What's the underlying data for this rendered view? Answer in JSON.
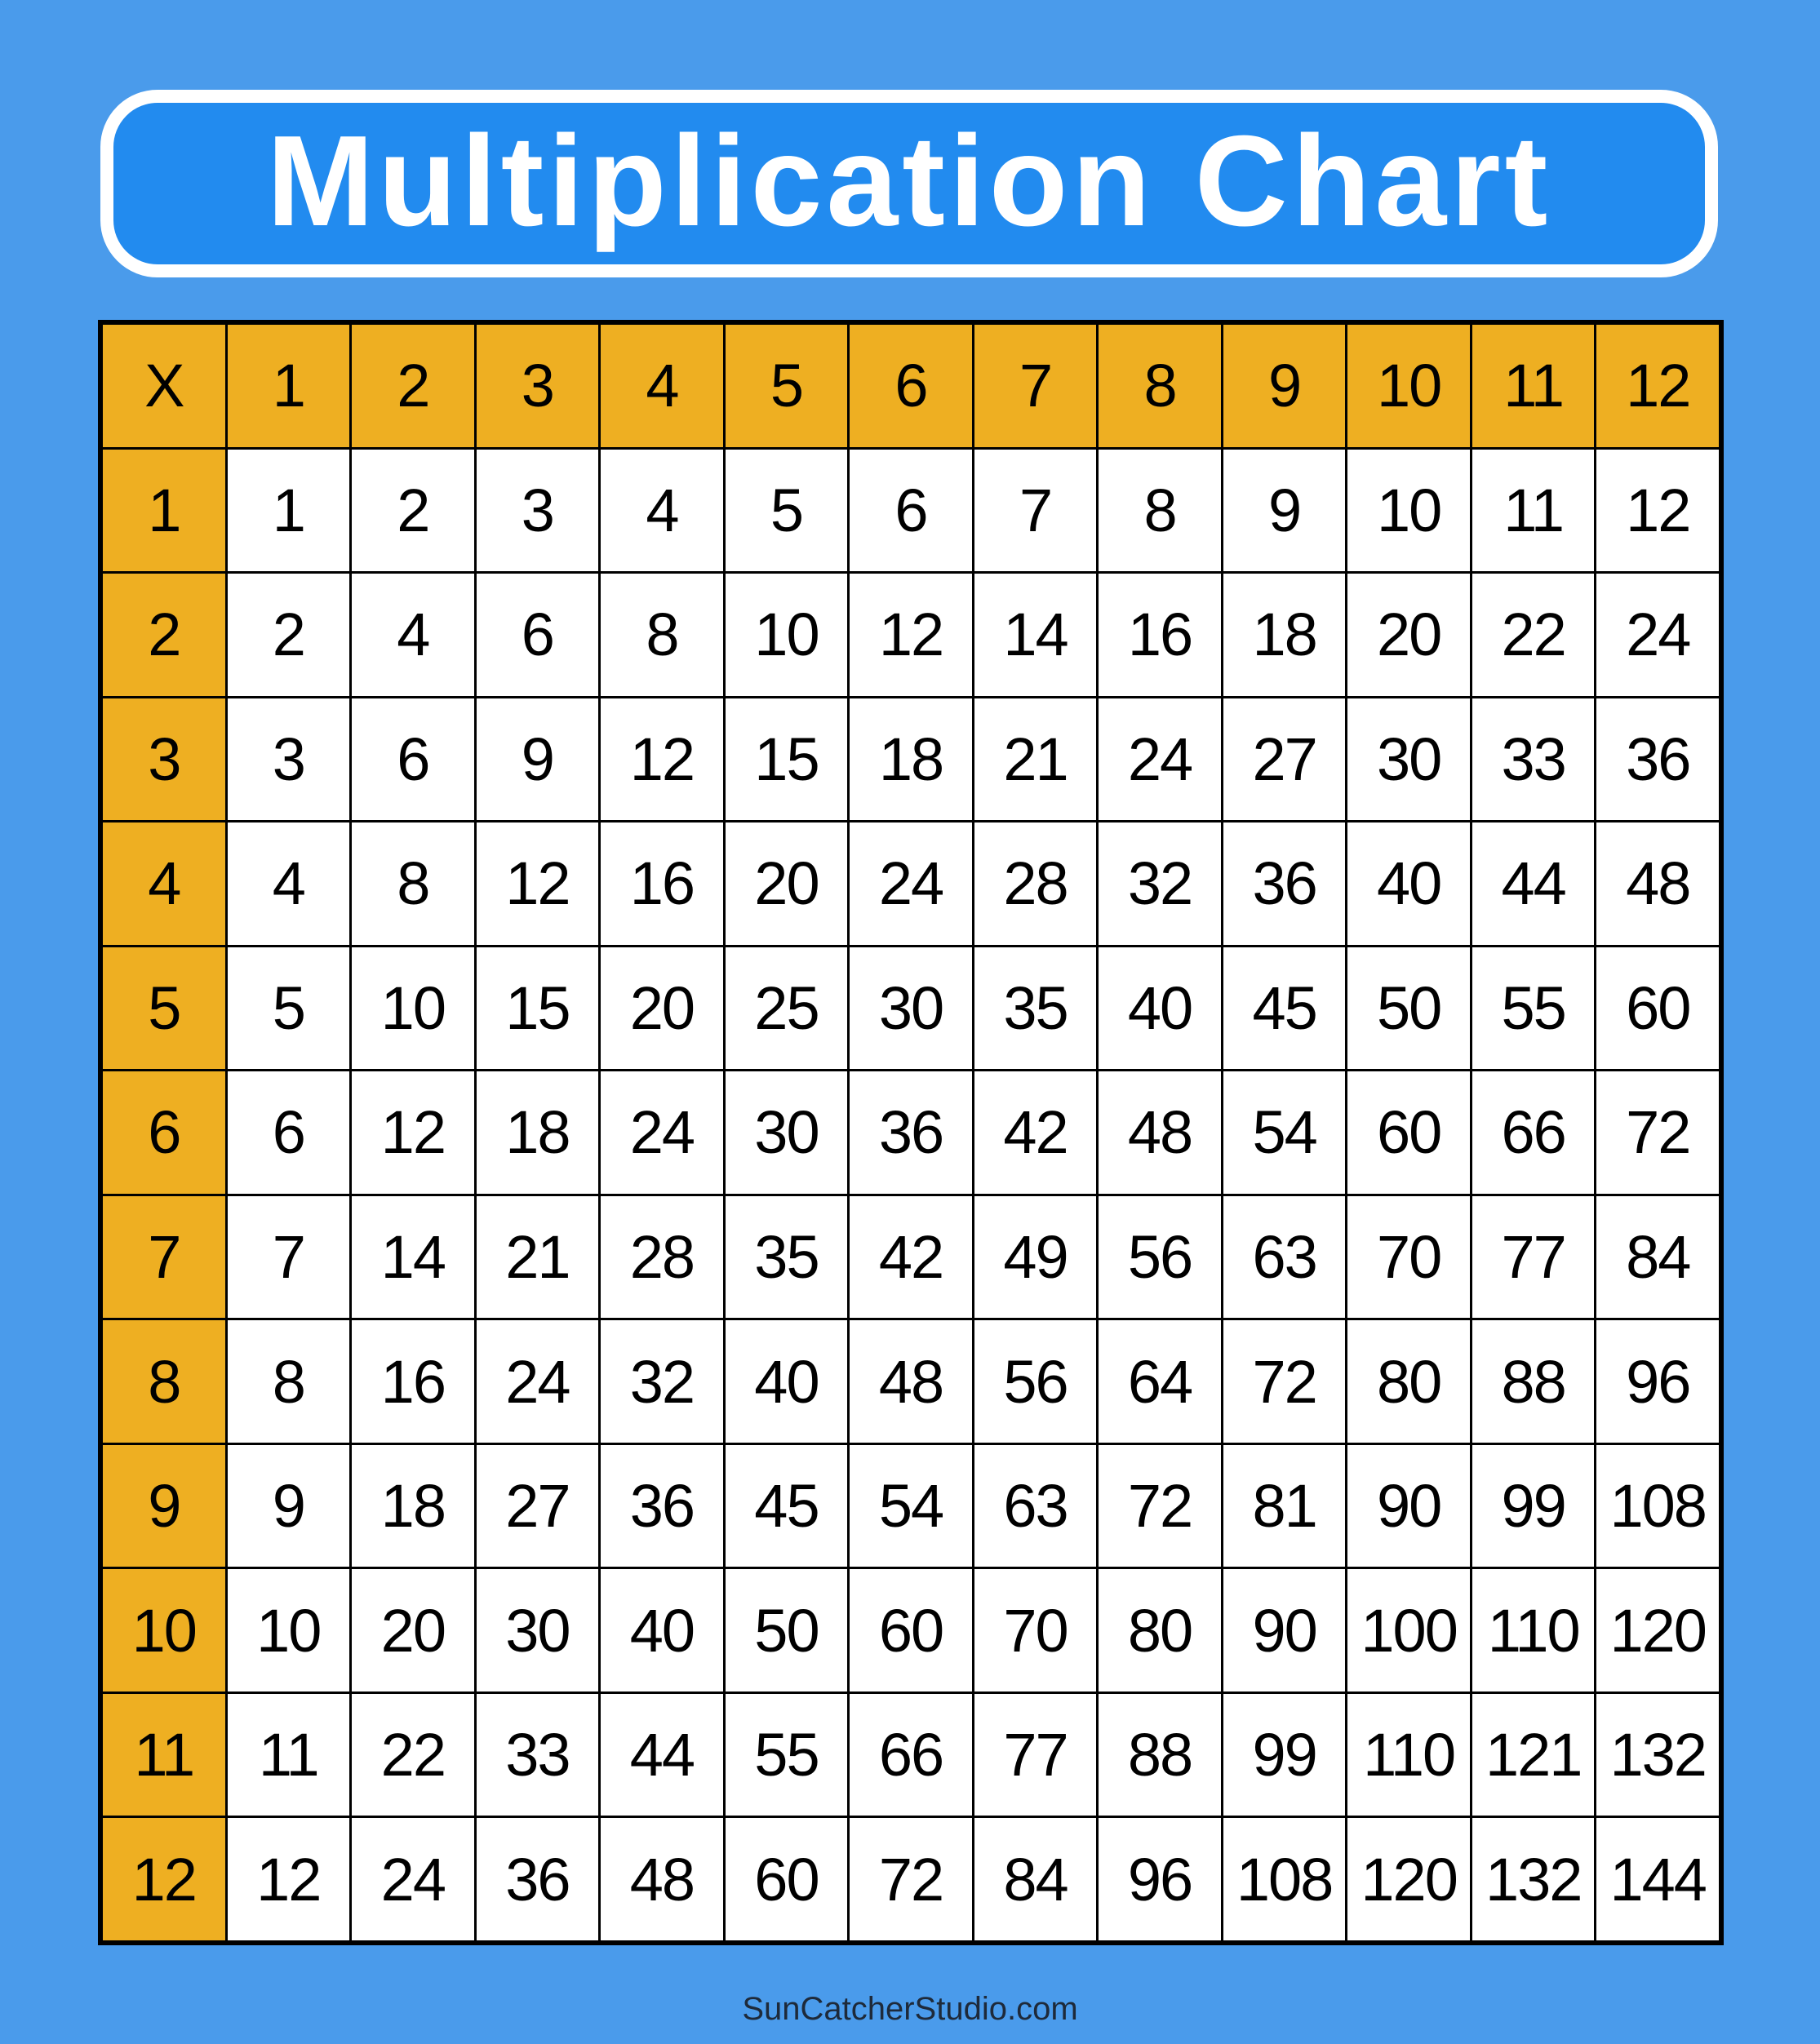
{
  "title": "Multiplication Chart",
  "corner_label": "X",
  "factors": [
    1,
    2,
    3,
    4,
    5,
    6,
    7,
    8,
    9,
    10,
    11,
    12
  ],
  "footer": "SunCatcherStudio.com",
  "colors": {
    "background": "#4A9BEB",
    "title_box": "#228BEF",
    "header_cells": "#EEAF22",
    "body_cells": "#FFFFFF",
    "grid_lines": "#000000"
  },
  "chart_data": {
    "type": "table",
    "title": "Multiplication Chart",
    "columns": [
      "X",
      "1",
      "2",
      "3",
      "4",
      "5",
      "6",
      "7",
      "8",
      "9",
      "10",
      "11",
      "12"
    ],
    "rows": [
      [
        "1",
        1,
        2,
        3,
        4,
        5,
        6,
        7,
        8,
        9,
        10,
        11,
        12
      ],
      [
        "2",
        2,
        4,
        6,
        8,
        10,
        12,
        14,
        16,
        18,
        20,
        22,
        24
      ],
      [
        "3",
        3,
        6,
        9,
        12,
        15,
        18,
        21,
        24,
        27,
        30,
        33,
        36
      ],
      [
        "4",
        4,
        8,
        12,
        16,
        20,
        24,
        28,
        32,
        36,
        40,
        44,
        48
      ],
      [
        "5",
        5,
        10,
        15,
        20,
        25,
        30,
        35,
        40,
        45,
        50,
        55,
        60
      ],
      [
        "6",
        6,
        12,
        18,
        24,
        30,
        36,
        42,
        48,
        54,
        60,
        66,
        72
      ],
      [
        "7",
        7,
        14,
        21,
        28,
        35,
        42,
        49,
        56,
        63,
        70,
        77,
        84
      ],
      [
        "8",
        8,
        16,
        24,
        32,
        40,
        48,
        56,
        64,
        72,
        80,
        88,
        96
      ],
      [
        "9",
        9,
        18,
        27,
        36,
        45,
        54,
        63,
        72,
        81,
        90,
        99,
        108
      ],
      [
        "10",
        10,
        20,
        30,
        40,
        50,
        60,
        70,
        80,
        90,
        100,
        110,
        120
      ],
      [
        "11",
        11,
        22,
        33,
        44,
        55,
        66,
        77,
        88,
        99,
        110,
        121,
        132
      ],
      [
        "12",
        12,
        24,
        36,
        48,
        60,
        72,
        84,
        96,
        108,
        120,
        132,
        144
      ]
    ]
  }
}
